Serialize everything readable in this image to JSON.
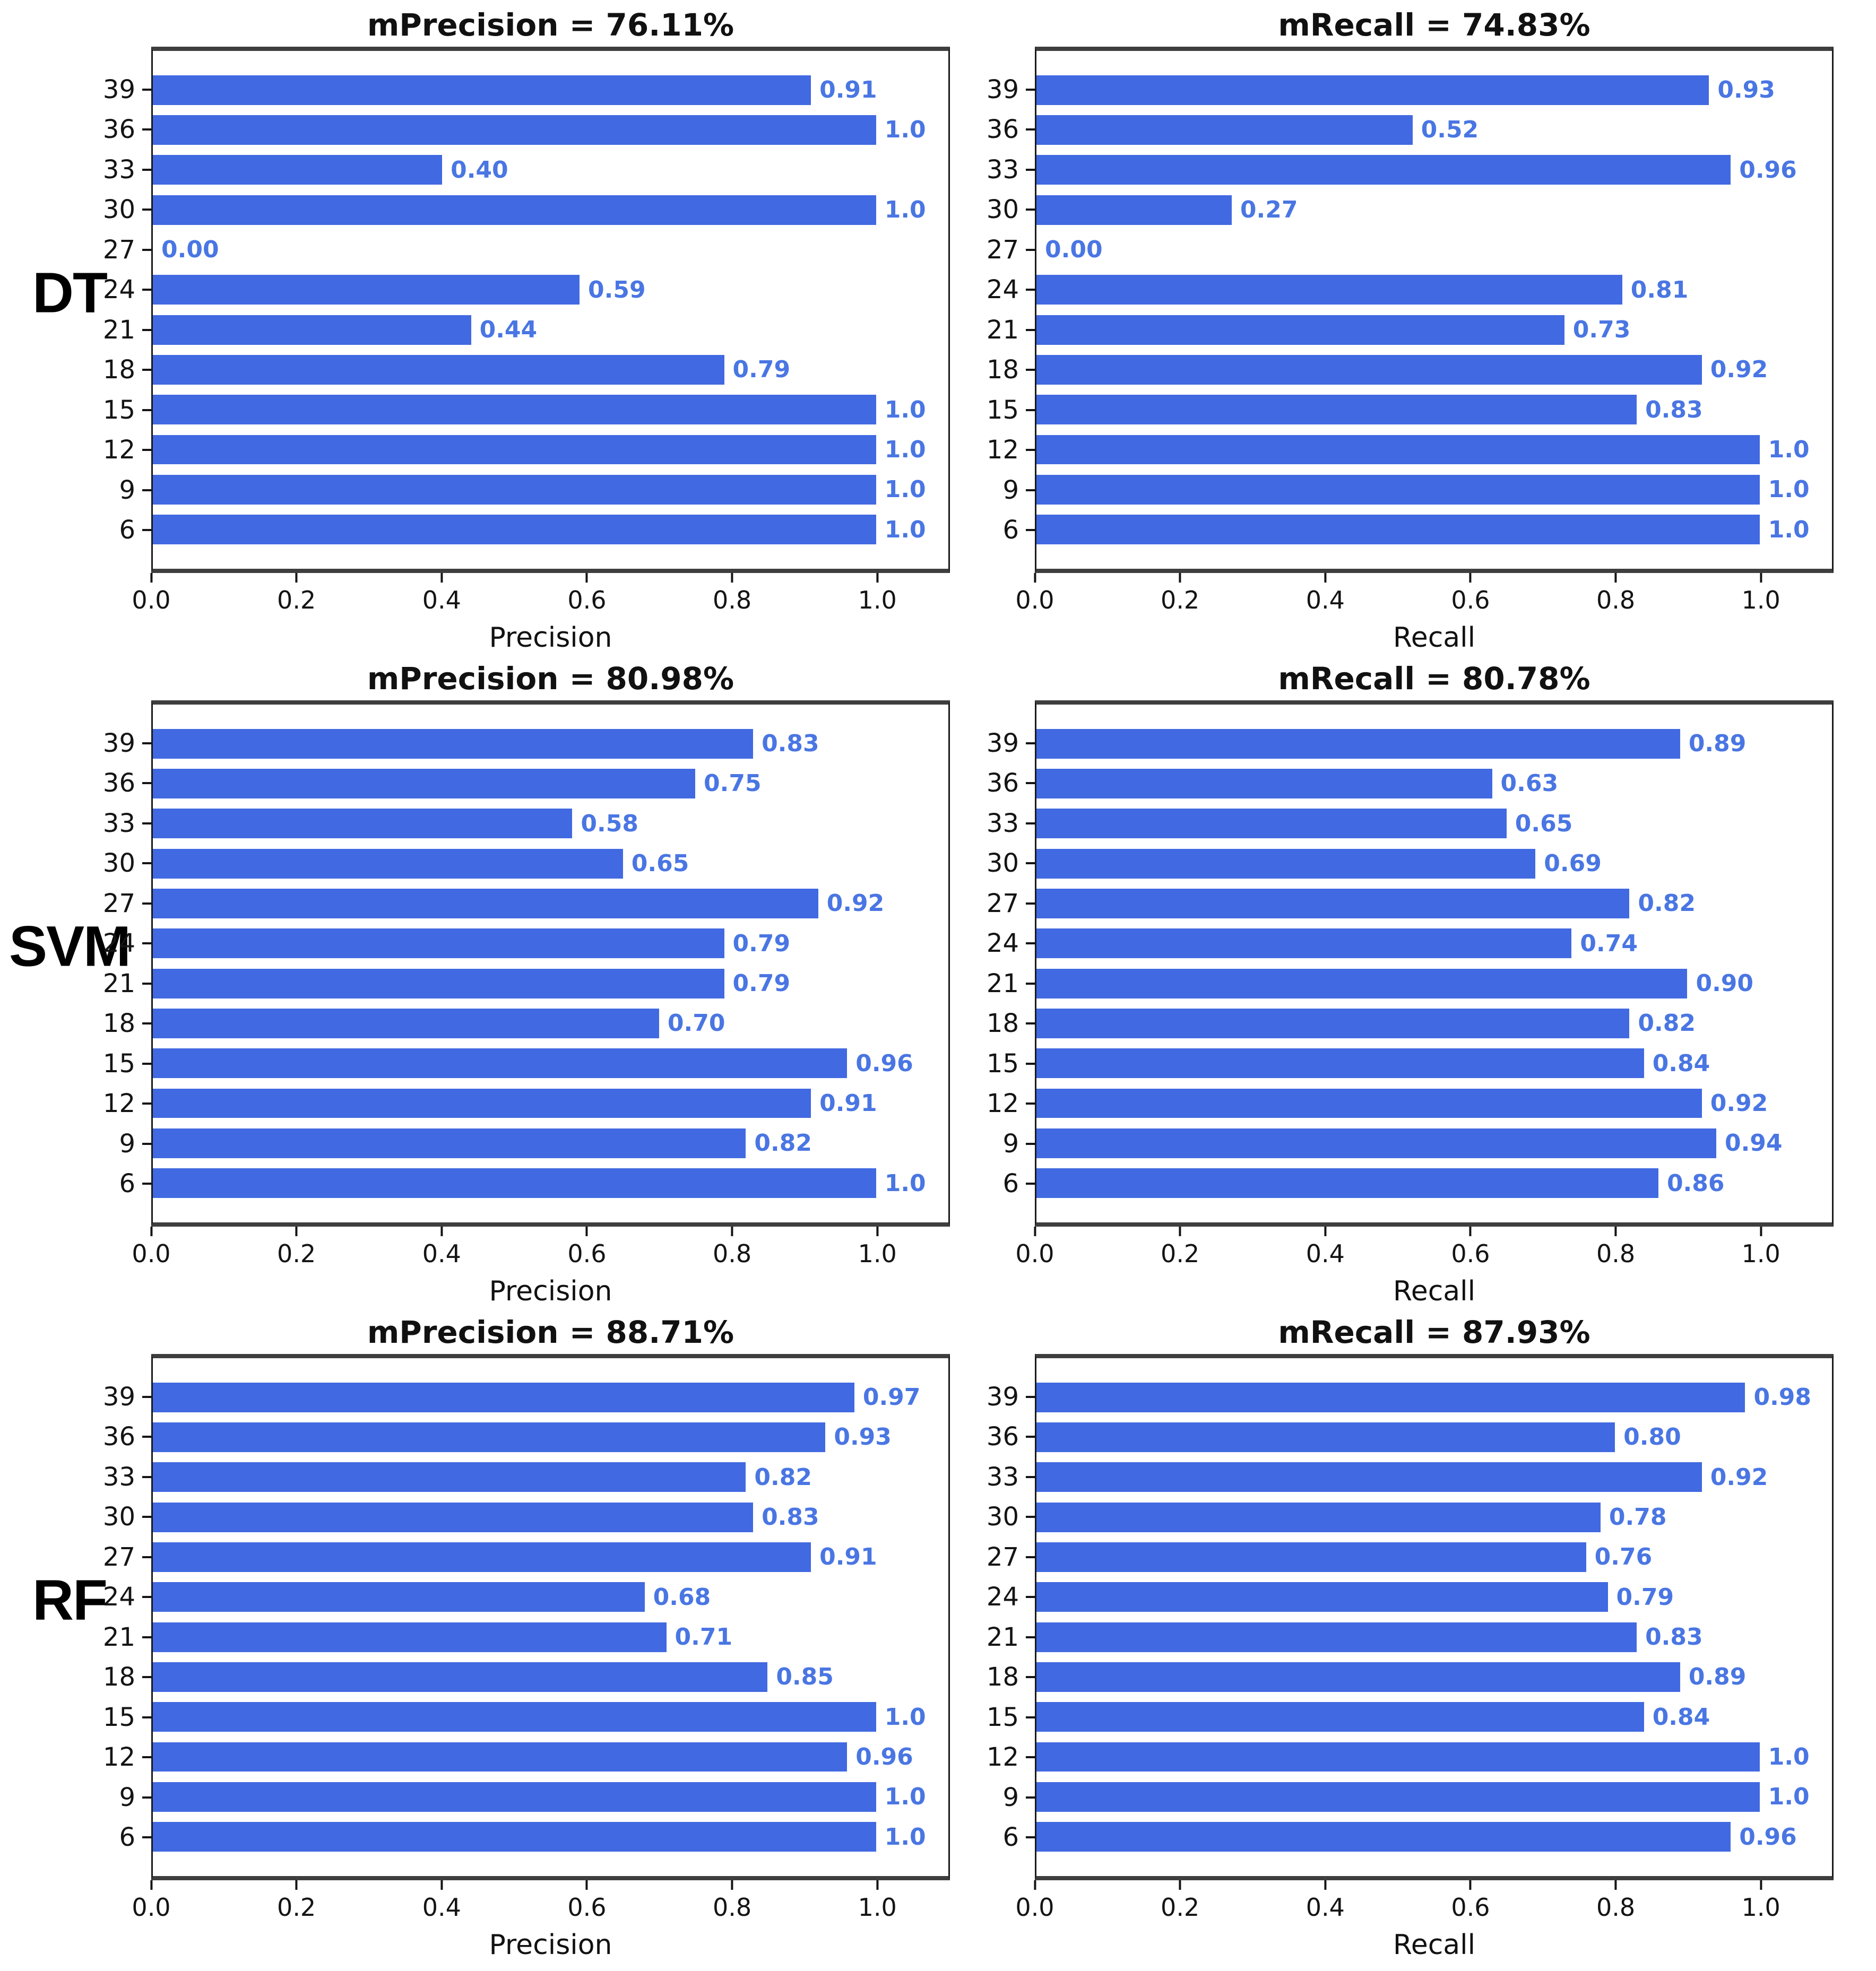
{
  "figure": {
    "rows": [
      {
        "label": "DT",
        "chart_indexes": [
          0,
          1
        ]
      },
      {
        "label": "SVM",
        "chart_indexes": [
          2,
          3
        ]
      },
      {
        "label": "RF",
        "chart_indexes": [
          4,
          5
        ]
      }
    ]
  },
  "colors": {
    "bar": "#4169e1",
    "value_label": "#4a76e3",
    "axis": "#141414"
  },
  "chart_data": [
    {
      "type": "bar",
      "orientation": "horizontal",
      "group": "DT",
      "title": "mPrecision = 76.11%",
      "xlabel": "Precision",
      "ylabel": "",
      "categories": [
        "39",
        "36",
        "33",
        "30",
        "27",
        "24",
        "21",
        "18",
        "15",
        "12",
        "9",
        "6"
      ],
      "values": [
        0.91,
        1.0,
        0.4,
        1.0,
        0.0,
        0.59,
        0.44,
        0.79,
        1.0,
        1.0,
        1.0,
        1.0
      ],
      "value_labels": [
        "0.91",
        "1.0",
        "0.40",
        "1.0",
        "0.00",
        "0.59",
        "0.44",
        "0.79",
        "1.0",
        "1.0",
        "1.0",
        "1.0"
      ],
      "xlim": [
        0,
        1.1
      ],
      "xticks": [
        "0.0",
        "0.2",
        "0.4",
        "0.6",
        "0.8",
        "1.0"
      ],
      "grid": false,
      "legend": null
    },
    {
      "type": "bar",
      "orientation": "horizontal",
      "group": "DT",
      "title": "mRecall = 74.83%",
      "xlabel": "Recall",
      "ylabel": "",
      "categories": [
        "39",
        "36",
        "33",
        "30",
        "27",
        "24",
        "21",
        "18",
        "15",
        "12",
        "9",
        "6"
      ],
      "values": [
        0.93,
        0.52,
        0.96,
        0.27,
        0.0,
        0.81,
        0.73,
        0.92,
        0.83,
        1.0,
        1.0,
        1.0
      ],
      "value_labels": [
        "0.93",
        "0.52",
        "0.96",
        "0.27",
        "0.00",
        "0.81",
        "0.73",
        "0.92",
        "0.83",
        "1.0",
        "1.0",
        "1.0"
      ],
      "xlim": [
        0,
        1.1
      ],
      "xticks": [
        "0.0",
        "0.2",
        "0.4",
        "0.6",
        "0.8",
        "1.0"
      ],
      "grid": false,
      "legend": null
    },
    {
      "type": "bar",
      "orientation": "horizontal",
      "group": "SVM",
      "title": "mPrecision = 80.98%",
      "xlabel": "Precision",
      "ylabel": "",
      "categories": [
        "39",
        "36",
        "33",
        "30",
        "27",
        "24",
        "21",
        "18",
        "15",
        "12",
        "9",
        "6"
      ],
      "values": [
        0.83,
        0.75,
        0.58,
        0.65,
        0.92,
        0.79,
        0.79,
        0.7,
        0.96,
        0.91,
        0.82,
        1.0
      ],
      "value_labels": [
        "0.83",
        "0.75",
        "0.58",
        "0.65",
        "0.92",
        "0.79",
        "0.79",
        "0.70",
        "0.96",
        "0.91",
        "0.82",
        "1.0"
      ],
      "xlim": [
        0,
        1.1
      ],
      "xticks": [
        "0.0",
        "0.2",
        "0.4",
        "0.6",
        "0.8",
        "1.0"
      ],
      "grid": false,
      "legend": null
    },
    {
      "type": "bar",
      "orientation": "horizontal",
      "group": "SVM",
      "title": "mRecall = 80.78%",
      "xlabel": "Recall",
      "ylabel": "",
      "categories": [
        "39",
        "36",
        "33",
        "30",
        "27",
        "24",
        "21",
        "18",
        "15",
        "12",
        "9",
        "6"
      ],
      "values": [
        0.89,
        0.63,
        0.65,
        0.69,
        0.82,
        0.74,
        0.9,
        0.82,
        0.84,
        0.92,
        0.94,
        0.86
      ],
      "value_labels": [
        "0.89",
        "0.63",
        "0.65",
        "0.69",
        "0.82",
        "0.74",
        "0.90",
        "0.82",
        "0.84",
        "0.92",
        "0.94",
        "0.86"
      ],
      "xlim": [
        0,
        1.1
      ],
      "xticks": [
        "0.0",
        "0.2",
        "0.4",
        "0.6",
        "0.8",
        "1.0"
      ],
      "grid": false,
      "legend": null
    },
    {
      "type": "bar",
      "orientation": "horizontal",
      "group": "RF",
      "title": "mPrecision = 88.71%",
      "xlabel": "Precision",
      "ylabel": "",
      "categories": [
        "39",
        "36",
        "33",
        "30",
        "27",
        "24",
        "21",
        "18",
        "15",
        "12",
        "9",
        "6"
      ],
      "values": [
        0.97,
        0.93,
        0.82,
        0.83,
        0.91,
        0.68,
        0.71,
        0.85,
        1.0,
        0.96,
        1.0,
        1.0
      ],
      "value_labels": [
        "0.97",
        "0.93",
        "0.82",
        "0.83",
        "0.91",
        "0.68",
        "0.71",
        "0.85",
        "1.0",
        "0.96",
        "1.0",
        "1.0"
      ],
      "xlim": [
        0,
        1.1
      ],
      "xticks": [
        "0.0",
        "0.2",
        "0.4",
        "0.6",
        "0.8",
        "1.0"
      ],
      "grid": false,
      "legend": null
    },
    {
      "type": "bar",
      "orientation": "horizontal",
      "group": "RF",
      "title": "mRecall = 87.93%",
      "xlabel": "Recall",
      "ylabel": "",
      "categories": [
        "39",
        "36",
        "33",
        "30",
        "27",
        "24",
        "21",
        "18",
        "15",
        "12",
        "9",
        "6"
      ],
      "values": [
        0.98,
        0.8,
        0.92,
        0.78,
        0.76,
        0.79,
        0.83,
        0.89,
        0.84,
        1.0,
        1.0,
        0.96
      ],
      "value_labels": [
        "0.98",
        "0.80",
        "0.92",
        "0.78",
        "0.76",
        "0.79",
        "0.83",
        "0.89",
        "0.84",
        "1.0",
        "1.0",
        "0.96"
      ],
      "xlim": [
        0,
        1.1
      ],
      "xticks": [
        "0.0",
        "0.2",
        "0.4",
        "0.6",
        "0.8",
        "1.0"
      ],
      "grid": false,
      "legend": null
    }
  ]
}
